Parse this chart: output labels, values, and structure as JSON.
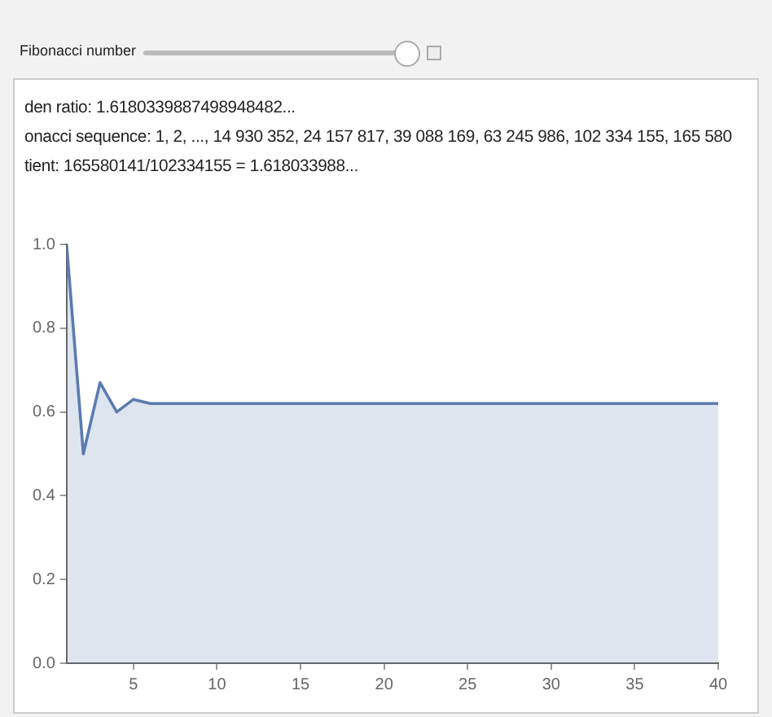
{
  "chart_data": {
    "type": "area",
    "annotations": [
      "Fibonacci number",
      "den ratio: 1.6180339887498948482...",
      "onacci sequence: 1, 2, ..., 14 930 352, 24 157 817, 39 088 169, 63 245 986, 102 334 155, 165 580",
      "tient: 165580141/102334155 =  1.618033988..."
    ],
    "x": [
      1,
      2,
      3,
      4,
      5,
      6,
      7,
      8,
      9,
      10,
      11,
      12,
      13,
      14,
      15,
      16,
      17,
      18,
      19,
      20,
      21,
      22,
      23,
      24,
      25,
      26,
      27,
      28,
      29,
      30,
      31,
      32,
      33,
      34,
      35,
      36,
      37,
      38,
      39,
      40
    ],
    "series": [
      {
        "color": "#5b7bb0",
        "values": [
          1,
          0.5,
          0.67,
          0.6,
          0.63,
          0.62,
          0.62,
          0.62,
          0.62,
          0.62,
          0.62,
          0.62,
          0.62,
          0.62,
          0.62,
          0.62,
          0.62,
          0.62,
          0.62,
          0.62,
          0.62,
          0.62,
          0.62,
          0.62,
          0.62,
          0.62,
          0.62,
          0.62,
          0.62,
          0.62,
          0.62,
          0.62,
          0.62,
          0.62,
          0.62,
          0.62,
          0.62,
          0.62,
          0.62,
          0.62
        ]
      }
    ],
    "xlim": [
      1,
      40
    ],
    "xticks": [
      5,
      10,
      15,
      20,
      25,
      30,
      35,
      40
    ],
    "ylim": [
      0,
      1
    ],
    "yticks": [
      {
        "value": 0,
        "label": "0.0"
      },
      {
        "value": 0.2,
        "label": "0.2"
      },
      {
        "value": 0.4,
        "label": "0.4"
      },
      {
        "value": 0.6,
        "label": "0.6"
      },
      {
        "value": 0.8,
        "label": "0.8"
      },
      {
        "value": 1,
        "label": "1.0"
      }
    ],
    "grid": false,
    "legend": false
  }
}
